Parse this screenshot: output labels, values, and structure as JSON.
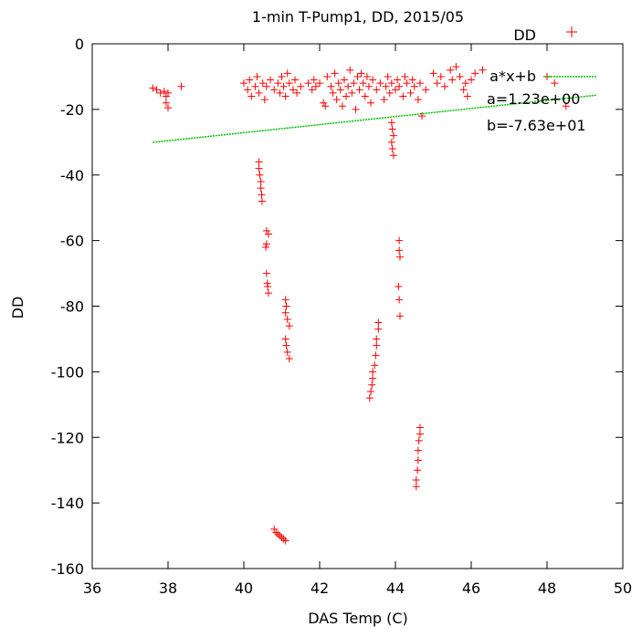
{
  "chart_data": {
    "type": "scatter",
    "title": "1-min T-Pump1, DD, 2015/05",
    "xlabel": "DAS Temp (C)",
    "ylabel": "DD",
    "xlim": [
      36,
      50
    ],
    "ylim": [
      -160,
      0
    ],
    "xticks": [
      "36",
      "38",
      "40",
      "42",
      "44",
      "46",
      "48",
      "50"
    ],
    "yticks": [
      "0",
      "-20",
      "-40",
      "-60",
      "-80",
      "-100",
      "-120",
      "-140",
      "-160"
    ],
    "grid": false,
    "legend_position": "top-right",
    "series": [
      {
        "name": "DD",
        "kind": "points",
        "color": "#ff0000",
        "points": [
          [
            37.6,
            -13.5
          ],
          [
            37.7,
            -14
          ],
          [
            37.8,
            -15
          ],
          [
            37.9,
            -14.5
          ],
          [
            37.95,
            -16
          ],
          [
            37.95,
            -18
          ],
          [
            38.0,
            -19.5
          ],
          [
            38.0,
            -15
          ],
          [
            38.35,
            -13
          ],
          [
            40.0,
            -12
          ],
          [
            40.1,
            -14
          ],
          [
            40.15,
            -11
          ],
          [
            40.2,
            -16
          ],
          [
            40.3,
            -13
          ],
          [
            40.35,
            -10
          ],
          [
            40.4,
            -15
          ],
          [
            40.5,
            -12
          ],
          [
            40.55,
            -17
          ],
          [
            40.6,
            -13
          ],
          [
            40.7,
            -11
          ],
          [
            40.8,
            -14
          ],
          [
            40.9,
            -12
          ],
          [
            40.95,
            -15
          ],
          [
            41.0,
            -10
          ],
          [
            41.05,
            -13
          ],
          [
            41.1,
            -16
          ],
          [
            41.15,
            -9
          ],
          [
            41.2,
            -12
          ],
          [
            41.3,
            -14
          ],
          [
            41.35,
            -11
          ],
          [
            41.4,
            -15
          ],
          [
            41.5,
            -13
          ],
          [
            41.7,
            -12
          ],
          [
            41.8,
            -14
          ],
          [
            41.85,
            -11
          ],
          [
            41.9,
            -13
          ],
          [
            42.0,
            -12
          ],
          [
            42.1,
            -18
          ],
          [
            42.15,
            -19
          ],
          [
            42.2,
            -10
          ],
          [
            42.3,
            -13
          ],
          [
            42.35,
            -15
          ],
          [
            42.4,
            -9
          ],
          [
            42.45,
            -17
          ],
          [
            42.5,
            -12
          ],
          [
            42.55,
            -14
          ],
          [
            42.6,
            -19
          ],
          [
            42.65,
            -11
          ],
          [
            42.7,
            -16
          ],
          [
            42.75,
            -13
          ],
          [
            42.8,
            -8
          ],
          [
            42.85,
            -15
          ],
          [
            42.9,
            -12
          ],
          [
            42.95,
            -20
          ],
          [
            43.0,
            -10
          ],
          [
            43.05,
            -14
          ],
          [
            43.1,
            -9
          ],
          [
            43.15,
            -12
          ],
          [
            43.2,
            -16
          ],
          [
            43.25,
            -10
          ],
          [
            43.3,
            -13
          ],
          [
            43.35,
            -18
          ],
          [
            43.4,
            -11
          ],
          [
            43.5,
            -14
          ],
          [
            43.6,
            -12
          ],
          [
            43.7,
            -17
          ],
          [
            43.75,
            -13
          ],
          [
            43.8,
            -10
          ],
          [
            43.85,
            -15
          ],
          [
            43.9,
            -12
          ],
          [
            44.0,
            -14
          ],
          [
            44.05,
            -11
          ],
          [
            44.1,
            -13
          ],
          [
            44.2,
            -16
          ],
          [
            44.25,
            -10
          ],
          [
            44.3,
            -12
          ],
          [
            44.4,
            -15
          ],
          [
            44.45,
            -11
          ],
          [
            44.5,
            -13
          ],
          [
            44.6,
            -17
          ],
          [
            44.65,
            -12
          ],
          [
            44.7,
            -22
          ],
          [
            44.8,
            -14
          ],
          [
            45.0,
            -9
          ],
          [
            45.1,
            -12
          ],
          [
            45.2,
            -10
          ],
          [
            45.3,
            -13
          ],
          [
            45.45,
            -8
          ],
          [
            45.5,
            -11
          ],
          [
            45.6,
            -7
          ],
          [
            45.7,
            -10
          ],
          [
            45.8,
            -14
          ],
          [
            45.85,
            -12
          ],
          [
            45.9,
            -16
          ],
          [
            46.0,
            -11
          ],
          [
            46.1,
            -9
          ],
          [
            46.3,
            -8
          ],
          [
            48.0,
            -10
          ],
          [
            48.2,
            -12
          ],
          [
            48.5,
            -19
          ],
          [
            40.4,
            -36
          ],
          [
            40.4,
            -38
          ],
          [
            40.42,
            -40
          ],
          [
            40.45,
            -42
          ],
          [
            40.45,
            -44
          ],
          [
            40.47,
            -46
          ],
          [
            40.48,
            -48
          ],
          [
            40.6,
            -57
          ],
          [
            40.65,
            -58
          ],
          [
            40.6,
            -61
          ],
          [
            40.58,
            -62
          ],
          [
            40.6,
            -70
          ],
          [
            40.62,
            -73
          ],
          [
            40.63,
            -74
          ],
          [
            40.65,
            -76
          ],
          [
            41.1,
            -78
          ],
          [
            41.12,
            -80
          ],
          [
            41.1,
            -82
          ],
          [
            41.15,
            -84
          ],
          [
            41.2,
            -86
          ],
          [
            41.1,
            -90
          ],
          [
            41.12,
            -92
          ],
          [
            41.15,
            -94
          ],
          [
            41.2,
            -96
          ],
          [
            40.8,
            -148
          ],
          [
            40.85,
            -149
          ],
          [
            40.9,
            -149.5
          ],
          [
            40.95,
            -150
          ],
          [
            41.0,
            -150.5
          ],
          [
            41.05,
            -151
          ],
          [
            41.1,
            -151.5
          ],
          [
            43.55,
            -85
          ],
          [
            43.55,
            -87
          ],
          [
            43.5,
            -90
          ],
          [
            43.5,
            -92
          ],
          [
            43.48,
            -95
          ],
          [
            43.45,
            -98
          ],
          [
            43.4,
            -100
          ],
          [
            43.4,
            -102
          ],
          [
            43.38,
            -104
          ],
          [
            43.35,
            -106
          ],
          [
            43.32,
            -108
          ],
          [
            43.9,
            -24
          ],
          [
            43.92,
            -26
          ],
          [
            43.95,
            -28
          ],
          [
            43.9,
            -30
          ],
          [
            43.92,
            -32
          ],
          [
            43.95,
            -34
          ],
          [
            44.1,
            -60
          ],
          [
            44.1,
            -63
          ],
          [
            44.12,
            -65
          ],
          [
            44.08,
            -74
          ],
          [
            44.1,
            -78
          ],
          [
            44.12,
            -83
          ],
          [
            44.65,
            -117
          ],
          [
            44.65,
            -119
          ],
          [
            44.62,
            -121
          ],
          [
            44.6,
            -124
          ],
          [
            44.6,
            -127
          ],
          [
            44.58,
            -130
          ],
          [
            44.55,
            -133
          ],
          [
            44.55,
            -135
          ]
        ]
      },
      {
        "name": "a*x+b",
        "kind": "line",
        "color": "#00c000",
        "x": [
          37.6,
          49.3
        ],
        "a": 1.23,
        "b": -76.3
      }
    ],
    "annotations": [
      "a=1.23e+00",
      "b=-7.63e+01"
    ]
  }
}
